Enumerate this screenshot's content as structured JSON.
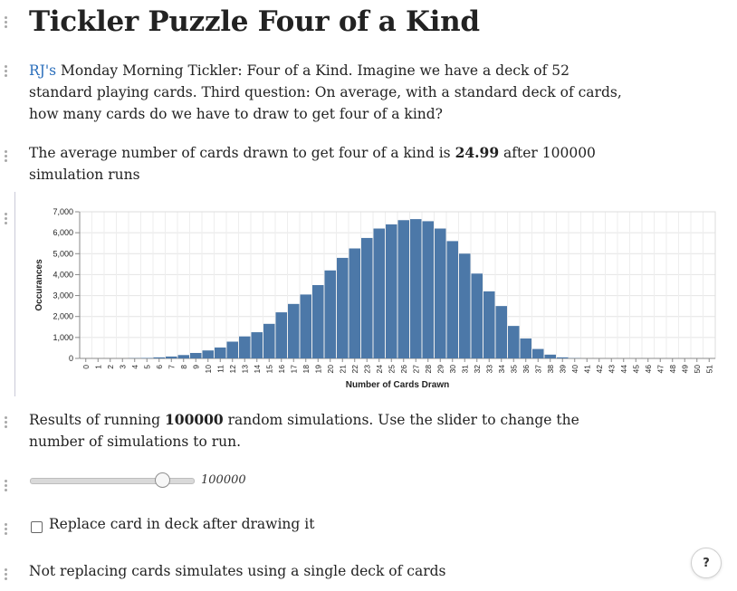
{
  "title": "Tickler Puzzle Four of a Kind",
  "intro": {
    "link_text": "RJ's",
    "text": " Monday Morning Tickler: Four of a Kind. Imagine we have a deck of 52 standard playing cards. Third question: On average, with a standard deck of cards, how many cards do we have to draw to get four of a kind?"
  },
  "summary": {
    "before": "The average number of cards drawn to get four of a kind is ",
    "value": "24.99",
    "after": " after 100000 simulation runs"
  },
  "results": {
    "before": "Results of running ",
    "value": "100000",
    "after": " random simulations. Use the slider to change the number of simulations to run."
  },
  "slider": {
    "value": "100000",
    "fraction": 0.8
  },
  "checkbox": {
    "label": "Replace card in deck after drawing it",
    "checked": false
  },
  "note": "Not replacing cards simulates using a single deck of cards",
  "help_button": {
    "label": "?"
  },
  "chart_data": {
    "type": "bar",
    "xlabel": "Number of Cards Drawn",
    "ylabel": "Occurances",
    "ylim": [
      0,
      7000
    ],
    "yticks": [
      "0",
      "1,000",
      "2,000",
      "3,000",
      "4,000",
      "5,000",
      "6,000",
      "7,000"
    ],
    "bar_color": "#4c78a8",
    "categories": [
      "0",
      "1",
      "2",
      "3",
      "4",
      "5",
      "6",
      "7",
      "8",
      "9",
      "10",
      "11",
      "12",
      "13",
      "14",
      "15",
      "16",
      "17",
      "18",
      "19",
      "20",
      "21",
      "22",
      "23",
      "24",
      "25",
      "26",
      "27",
      "28",
      "29",
      "30",
      "31",
      "32",
      "33",
      "34",
      "35",
      "36",
      "37",
      "38",
      "39",
      "40",
      "41",
      "42",
      "43",
      "44",
      "45",
      "46",
      "47",
      "48",
      "49",
      "50",
      "51"
    ],
    "values": [
      0,
      0,
      0,
      0,
      10,
      20,
      50,
      90,
      160,
      260,
      380,
      520,
      800,
      1050,
      1250,
      1650,
      2200,
      2600,
      3050,
      3500,
      4200,
      4800,
      5250,
      5750,
      6200,
      6400,
      6600,
      6650,
      6550,
      6200,
      5600,
      5000,
      4050,
      3200,
      2500,
      1550,
      950,
      450,
      180,
      50,
      10,
      0,
      0,
      0,
      0,
      0,
      0,
      0,
      0,
      0,
      0,
      0
    ]
  }
}
